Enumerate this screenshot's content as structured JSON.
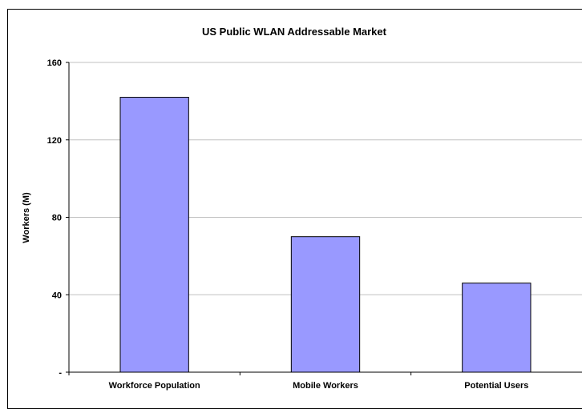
{
  "chart_data": {
    "type": "bar",
    "title": "US Public WLAN Addressable Market",
    "xlabel": "",
    "ylabel": "Workers (M)",
    "categories": [
      "Workforce Population",
      "Mobile Workers",
      "Potential Users"
    ],
    "values": [
      142,
      70,
      46
    ],
    "ylim": [
      0,
      160
    ],
    "yticks": [
      0,
      40,
      80,
      120,
      160
    ],
    "ytick_labels": [
      "-",
      "40",
      "80",
      "120",
      "160"
    ],
    "grid": true,
    "legend": "none",
    "colors": {
      "bar_fill": "#9999FF",
      "bar_stroke": "#000000",
      "grid": "#C0C0C0",
      "axis": "#000000"
    }
  }
}
